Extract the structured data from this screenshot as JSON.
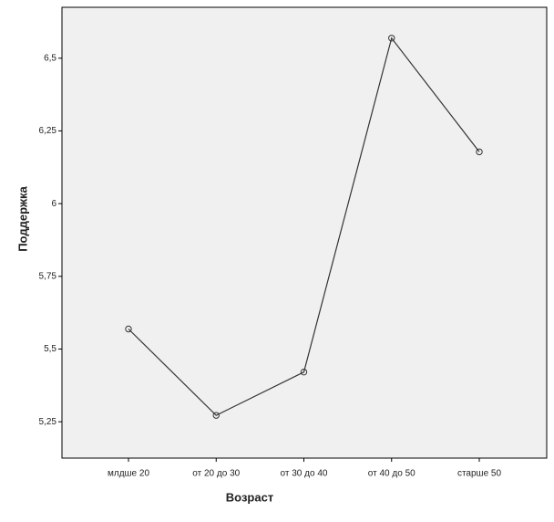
{
  "chart_data": {
    "type": "line",
    "x_label": "Возраст",
    "y_label": "Поддержка",
    "categories": [
      "млдше 20",
      "от 20 до 30",
      "от 30 до 40",
      "от 40 до 50",
      "старше 50"
    ],
    "values": [
      5.569,
      5.272,
      5.421,
      6.569,
      6.178
    ],
    "color": "#333333",
    "ylim": [
      5.125,
      6.675
    ],
    "yticks": [
      {
        "value": 5.25,
        "label": "5,25"
      },
      {
        "value": 5.5,
        "label": "5,5"
      },
      {
        "value": 5.75,
        "label": "5,75"
      },
      {
        "value": 6,
        "label": "6"
      },
      {
        "value": 6.25,
        "label": "6,25"
      },
      {
        "value": 6.5,
        "label": "6,5"
      }
    ],
    "grid": false
  }
}
